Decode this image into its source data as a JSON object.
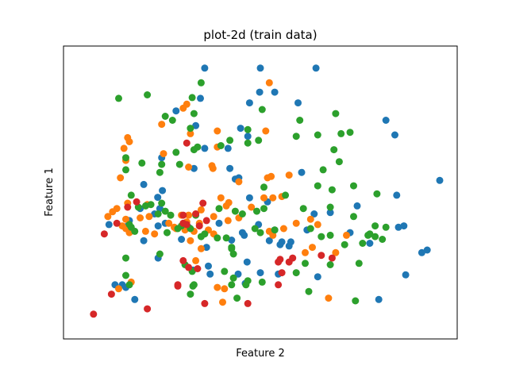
{
  "chart_data": {
    "type": "scatter",
    "title": "plot-2d (train data)",
    "xlabel": "Feature 2",
    "ylabel": "Feature 1",
    "ticks_visible": false,
    "grid": false,
    "legend": "none",
    "xlim": [
      0,
      100
    ],
    "ylim": [
      0,
      100
    ],
    "series": [
      {
        "color": "#1f77b4",
        "points": [
          [
            34.5,
            96.5
          ],
          [
            50.0,
            96.5
          ],
          [
            65.5,
            96.5
          ],
          [
            49.8,
            87.5
          ],
          [
            54.0,
            87.5
          ],
          [
            33.3,
            85.2
          ],
          [
            47.0,
            83.5
          ],
          [
            60.5,
            83.5
          ],
          [
            26.5,
            80.5
          ],
          [
            32.0,
            75.0
          ],
          [
            44.5,
            74.0
          ],
          [
            46.5,
            71.0
          ],
          [
            34.5,
            66.5
          ],
          [
            41.0,
            66.5
          ],
          [
            41.5,
            59.0
          ],
          [
            31.5,
            59.0
          ],
          [
            44.0,
            55.5
          ],
          [
            17.5,
            53.0
          ],
          [
            22.7,
            50.7
          ],
          [
            21.4,
            48.2
          ],
          [
            22.0,
            44.0
          ],
          [
            43.0,
            55.0
          ],
          [
            47.0,
            48.0
          ],
          [
            52.0,
            46.5
          ],
          [
            20.5,
            42.0
          ],
          [
            21.5,
            37.5
          ],
          [
            23.5,
            38.5
          ],
          [
            16.5,
            44.0
          ],
          [
            13.5,
            39.5
          ],
          [
            38.5,
            38.5
          ],
          [
            42.0,
            32.2
          ],
          [
            45.0,
            35.0
          ],
          [
            49.5,
            38.0
          ],
          [
            54.0,
            36.0
          ],
          [
            56.0,
            31.5
          ],
          [
            63.0,
            36.0
          ],
          [
            65.0,
            42.0
          ],
          [
            13.0,
            37.5
          ],
          [
            17.5,
            32.0
          ],
          [
            28.0,
            32.5
          ],
          [
            30.0,
            37.0
          ],
          [
            35.0,
            29.5
          ],
          [
            45.5,
            34.0
          ],
          [
            52.5,
            32.0
          ],
          [
            58.5,
            31.5
          ],
          [
            21.5,
            25.5
          ],
          [
            31.2,
            21.0
          ],
          [
            36.0,
            19.5
          ],
          [
            43.8,
            19.5
          ],
          [
            46.3,
            24.0
          ],
          [
            50.0,
            20.0
          ],
          [
            55.0,
            19.5
          ],
          [
            11.5,
            15.5
          ],
          [
            9.5,
            15.5
          ],
          [
            12.5,
            14.5
          ],
          [
            7.8,
            38.0
          ],
          [
            35.5,
            22.5
          ],
          [
            45.8,
            16.0
          ],
          [
            55.5,
            30.5
          ],
          [
            58.0,
            30.0
          ],
          [
            75.0,
            35.0
          ],
          [
            80.5,
            31.0
          ],
          [
            95.0,
            27.5
          ],
          [
            90.5,
            19.2
          ],
          [
            96.5,
            28.5
          ],
          [
            88.5,
            37.0
          ],
          [
            100.0,
            54.5
          ],
          [
            88.0,
            49.0
          ],
          [
            85.0,
            77.0
          ],
          [
            87.5,
            71.5
          ],
          [
            69.5,
            42.5
          ],
          [
            90.0,
            37.5
          ],
          [
            61.5,
            57.5
          ],
          [
            77.0,
            45.0
          ],
          [
            22.5,
            63.0
          ],
          [
            66.0,
            18.5
          ],
          [
            83.0,
            10.0
          ],
          [
            15.0,
            10.0
          ]
        ]
      },
      {
        "color": "#ff7f0e",
        "points": [
          [
            52.5,
            91.0
          ],
          [
            29.5,
            83.0
          ],
          [
            28.5,
            81.5
          ],
          [
            22.5,
            75.5
          ],
          [
            38.0,
            73.0
          ],
          [
            51.5,
            73.0
          ],
          [
            30.5,
            72.0
          ],
          [
            13.0,
            70.5
          ],
          [
            13.5,
            69.0
          ],
          [
            12.0,
            66.5
          ],
          [
            38.0,
            67.0
          ],
          [
            23.0,
            64.5
          ],
          [
            12.5,
            62.0
          ],
          [
            30.0,
            59.5
          ],
          [
            36.5,
            60.0
          ],
          [
            36.8,
            59.0
          ],
          [
            11.0,
            55.5
          ],
          [
            53.0,
            56.0
          ],
          [
            52.0,
            55.5
          ],
          [
            58.0,
            56.5
          ],
          [
            39.0,
            48.0
          ],
          [
            51.0,
            48.0
          ],
          [
            53.5,
            48.0
          ],
          [
            56.0,
            48.5
          ],
          [
            13.0,
            46.0
          ],
          [
            10.0,
            44.0
          ],
          [
            18.5,
            45.5
          ],
          [
            8.8,
            42.8
          ],
          [
            33.5,
            43.5
          ],
          [
            40.5,
            45.0
          ],
          [
            41.2,
            46.2
          ],
          [
            47.5,
            44.5
          ],
          [
            7.5,
            41.0
          ],
          [
            12.5,
            40.0
          ],
          [
            16.5,
            40.5
          ],
          [
            19.0,
            41.0
          ],
          [
            30.0,
            41.5
          ],
          [
            28.0,
            41.5
          ],
          [
            32.0,
            42.0
          ],
          [
            37.0,
            41.0
          ],
          [
            41.0,
            39.5
          ],
          [
            44.0,
            40.5
          ],
          [
            24.5,
            38.5
          ],
          [
            29.5,
            39.0
          ],
          [
            33.0,
            38.5
          ],
          [
            11.5,
            37.5
          ],
          [
            12.5,
            36.5
          ],
          [
            13.5,
            35.0
          ],
          [
            18.0,
            35.5
          ],
          [
            26.0,
            37.0
          ],
          [
            29.0,
            36.0
          ],
          [
            31.5,
            35.5
          ],
          [
            35.5,
            36.0
          ],
          [
            37.0,
            34.5
          ],
          [
            52.5,
            35.5
          ],
          [
            53.5,
            34.0
          ],
          [
            56.5,
            36.5
          ],
          [
            60.0,
            38.5
          ],
          [
            64.0,
            40.0
          ],
          [
            66.0,
            38.0
          ],
          [
            74.0,
            34.0
          ],
          [
            20.5,
            34.5
          ],
          [
            26.5,
            36.5
          ],
          [
            30.5,
            32.0
          ],
          [
            33.5,
            29.0
          ],
          [
            32.0,
            24.5
          ],
          [
            64.5,
            29.5
          ],
          [
            62.5,
            27.5
          ],
          [
            71.0,
            27.5
          ],
          [
            14.0,
            16.5
          ],
          [
            10.5,
            14.0
          ],
          [
            38.0,
            14.5
          ],
          [
            40.0,
            14.0
          ],
          [
            39.5,
            9.0
          ],
          [
            69.0,
            10.5
          ],
          [
            44.0,
            54.0
          ]
        ]
      },
      {
        "color": "#2ca02c",
        "points": [
          [
            33.5,
            91.0
          ],
          [
            10.5,
            85.2
          ],
          [
            18.5,
            86.5
          ],
          [
            31.0,
            85.5
          ],
          [
            23.5,
            78.5
          ],
          [
            25.5,
            77.0
          ],
          [
            31.5,
            79.5
          ],
          [
            50.5,
            81.0
          ],
          [
            46.5,
            73.5
          ],
          [
            30.5,
            74.0
          ],
          [
            41.5,
            69.5
          ],
          [
            39.0,
            67.5
          ],
          [
            32.5,
            67.0
          ],
          [
            31.5,
            66.0
          ],
          [
            26.5,
            65.0
          ],
          [
            46.5,
            68.5
          ],
          [
            49.5,
            69.5
          ],
          [
            66.0,
            71.5
          ],
          [
            75.0,
            72.5
          ],
          [
            70.5,
            66.0
          ],
          [
            60.0,
            71.0
          ],
          [
            72.5,
            72.0
          ],
          [
            61.0,
            77.0
          ],
          [
            71.0,
            79.5
          ],
          [
            27.5,
            60.5
          ],
          [
            17.0,
            61.0
          ],
          [
            12.5,
            63.0
          ],
          [
            12.5,
            58.5
          ],
          [
            22.5,
            60.5
          ],
          [
            72.0,
            61.5
          ],
          [
            67.5,
            58.5
          ],
          [
            22.0,
            57.5
          ],
          [
            76.0,
            52.5
          ],
          [
            66.0,
            52.5
          ],
          [
            70.0,
            51.0
          ],
          [
            82.5,
            49.5
          ],
          [
            51.0,
            52.0
          ],
          [
            14.0,
            49.0
          ],
          [
            19.5,
            45.5
          ],
          [
            16.0,
            44.5
          ],
          [
            22.5,
            46.0
          ],
          [
            23.5,
            43.0
          ],
          [
            25.0,
            41.5
          ],
          [
            32.0,
            41.5
          ],
          [
            38.5,
            44.0
          ],
          [
            43.0,
            43.0
          ],
          [
            45.0,
            42.0
          ],
          [
            49.0,
            43.0
          ],
          [
            51.0,
            44.0
          ],
          [
            57.0,
            49.0
          ],
          [
            62.0,
            44.0
          ],
          [
            69.5,
            44.5
          ],
          [
            76.0,
            41.0
          ],
          [
            82.0,
            37.5
          ],
          [
            85.0,
            37.0
          ],
          [
            80.5,
            34.5
          ],
          [
            82.0,
            33.5
          ],
          [
            84.0,
            32.5
          ],
          [
            21.5,
            42.0
          ],
          [
            18.0,
            45.0
          ],
          [
            13.5,
            38.0
          ],
          [
            14.0,
            37.0
          ],
          [
            15.0,
            35.5
          ],
          [
            24.0,
            35.0
          ],
          [
            27.0,
            36.5
          ],
          [
            28.0,
            37.5
          ],
          [
            30.5,
            36.5
          ],
          [
            33.5,
            33.5
          ],
          [
            34.5,
            34.5
          ],
          [
            38.0,
            33.0
          ],
          [
            40.5,
            33.0
          ],
          [
            42.0,
            29.5
          ],
          [
            42.5,
            27.0
          ],
          [
            42.0,
            29.0
          ],
          [
            48.5,
            36.5
          ],
          [
            50.0,
            35.0
          ],
          [
            54.0,
            36.0
          ],
          [
            64.0,
            36.5
          ],
          [
            67.0,
            33.5
          ],
          [
            69.5,
            34.0
          ],
          [
            73.5,
            30.5
          ],
          [
            78.5,
            31.0
          ],
          [
            22.0,
            27.0
          ],
          [
            29.0,
            23.0
          ],
          [
            31.0,
            20.5
          ],
          [
            40.0,
            20.5
          ],
          [
            42.5,
            18.0
          ],
          [
            46.0,
            15.5
          ],
          [
            46.5,
            17.0
          ],
          [
            50.5,
            16.5
          ],
          [
            60.0,
            20.0
          ],
          [
            62.5,
            23.5
          ],
          [
            69.5,
            23.0
          ],
          [
            77.5,
            23.5
          ],
          [
            12.5,
            25.5
          ],
          [
            13.5,
            15.5
          ],
          [
            12.5,
            19.0
          ],
          [
            31.2,
            15.0
          ],
          [
            31.5,
            15.5
          ],
          [
            30.5,
            12.0
          ],
          [
            42.0,
            15.5
          ],
          [
            43.5,
            10.5
          ],
          [
            63.5,
            13.0
          ],
          [
            76.5,
            9.5
          ],
          [
            80.0,
            34.0
          ]
        ]
      },
      {
        "color": "#d62728",
        "points": [
          [
            29.5,
            68.5
          ],
          [
            32.0,
            42.0
          ],
          [
            28.5,
            41.5
          ],
          [
            35.0,
            39.5
          ],
          [
            33.0,
            37.5
          ],
          [
            29.5,
            38.0
          ],
          [
            28.5,
            38.5
          ],
          [
            34.0,
            46.0
          ],
          [
            15.5,
            46.5
          ],
          [
            13.0,
            44.5
          ],
          [
            6.5,
            34.5
          ],
          [
            10.0,
            38.5
          ],
          [
            28.5,
            24.5
          ],
          [
            30.0,
            22.0
          ],
          [
            27.0,
            15.0
          ],
          [
            27.0,
            15.5
          ],
          [
            8.5,
            12.0
          ],
          [
            3.5,
            4.5
          ],
          [
            18.5,
            6.5
          ],
          [
            34.5,
            8.5
          ],
          [
            46.5,
            8.5
          ],
          [
            55.0,
            24.0
          ],
          [
            58.0,
            24.0
          ],
          [
            59.0,
            25.5
          ],
          [
            55.0,
            15.5
          ],
          [
            67.0,
            26.5
          ],
          [
            32.5,
            21.5
          ],
          [
            56.0,
            20.0
          ],
          [
            70.0,
            25.5
          ],
          [
            55.5,
            25.0
          ]
        ]
      }
    ]
  }
}
